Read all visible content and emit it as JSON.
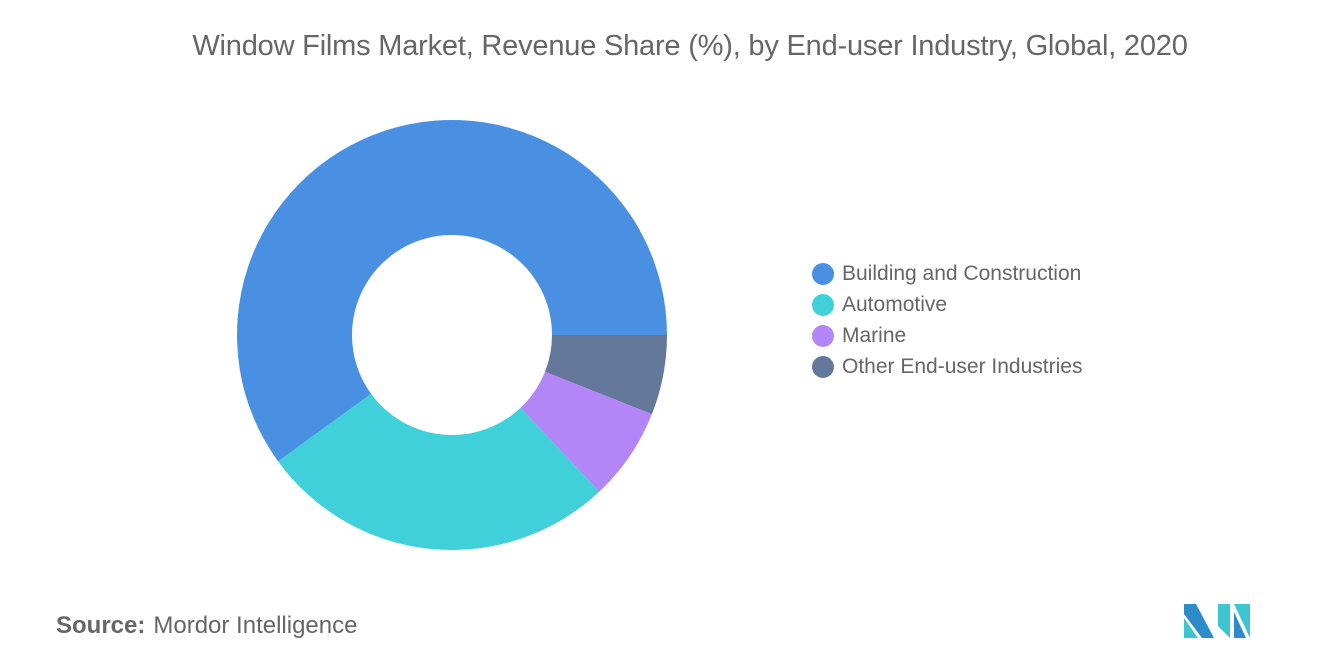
{
  "chart_data": {
    "type": "pie",
    "donut": true,
    "title": "Window Films Market, Revenue Share (%), by End-user Industry, Global, 2020",
    "categories": [
      "Building and Construction",
      "Automotive",
      "Marine",
      "Other End-user Industries"
    ],
    "values": [
      60,
      27,
      7,
      6
    ],
    "colors": [
      "#4a90e2",
      "#3fd0d9",
      "#b386f7",
      "#64799a"
    ],
    "legend_position": "right"
  },
  "source": {
    "label": "Source:",
    "value": "Mordor Intelligence"
  },
  "logo": {
    "colors": [
      "#2e8bc9",
      "#3fc5d0"
    ]
  }
}
